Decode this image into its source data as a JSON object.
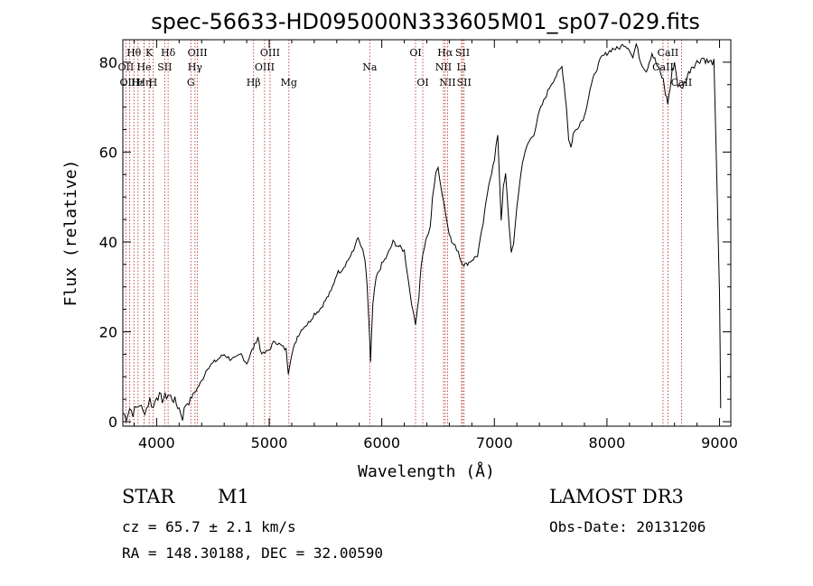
{
  "chart_data": {
    "type": "line",
    "title": "spec-56633-HD095000N333605M01_sp07-029.fits",
    "xlabel": "Wavelength (Å)",
    "ylabel": "Flux (relative)",
    "xlim": [
      3700,
      9100
    ],
    "ylim": [
      -1,
      85
    ],
    "xticks": [
      4000,
      5000,
      6000,
      7000,
      8000,
      9000
    ],
    "yticks": [
      0,
      20,
      40,
      60,
      80
    ],
    "series": [
      {
        "name": "flux",
        "x": [
          3700,
          3730,
          3760,
          3790,
          3820,
          3850,
          3880,
          3910,
          3940,
          3970,
          4000,
          4050,
          4100,
          4150,
          4200,
          4230,
          4260,
          4300,
          4350,
          4400,
          4450,
          4500,
          4550,
          4600,
          4650,
          4700,
          4750,
          4800,
          4850,
          4870,
          4900,
          4920,
          4950,
          5000,
          5050,
          5100,
          5150,
          5170,
          5190,
          5250,
          5300,
          5350,
          5400,
          5450,
          5500,
          5550,
          5600,
          5650,
          5700,
          5750,
          5780,
          5800,
          5830,
          5850,
          5870,
          5890,
          5900,
          5920,
          5950,
          6000,
          6050,
          6100,
          6150,
          6200,
          6250,
          6280,
          6300,
          6330,
          6350,
          6380,
          6400,
          6430,
          6450,
          6480,
          6500,
          6520,
          6550,
          6570,
          6600,
          6620,
          6650,
          6680,
          6700,
          6730,
          6750,
          6800,
          6850,
          6900,
          6950,
          7000,
          7030,
          7060,
          7080,
          7100,
          7130,
          7150,
          7170,
          7200,
          7250,
          7300,
          7350,
          7400,
          7450,
          7500,
          7550,
          7600,
          7620,
          7640,
          7660,
          7680,
          7700,
          7750,
          7800,
          7850,
          7900,
          7950,
          8000,
          8050,
          8100,
          8150,
          8200,
          8230,
          8260,
          8300,
          8350,
          8400,
          8450,
          8500,
          8520,
          8540,
          8560,
          8580,
          8600,
          8630,
          8660,
          8700,
          8750,
          8800,
          8850,
          8900,
          8950,
          9000,
          9010
        ],
        "values": [
          2,
          1,
          3,
          2,
          3,
          4,
          2,
          3,
          5,
          3,
          6,
          5,
          6,
          5,
          3,
          1,
          4,
          5,
          7,
          9,
          12,
          13,
          14,
          15,
          14,
          14,
          15,
          13,
          16,
          17,
          19,
          16,
          15,
          16,
          18,
          17,
          16,
          11,
          14,
          19,
          21,
          22,
          24,
          25,
          27,
          29,
          33,
          34,
          36,
          38,
          41,
          40,
          38,
          36,
          30,
          20,
          13,
          26,
          32,
          35,
          37,
          40,
          39,
          38,
          29,
          24,
          22,
          28,
          35,
          39,
          41,
          43,
          50,
          55,
          57,
          53,
          49,
          46,
          42,
          40,
          39,
          38,
          36,
          35,
          35,
          36,
          37,
          44,
          53,
          58,
          64,
          45,
          52,
          55,
          44,
          38,
          39,
          48,
          58,
          62,
          64,
          69,
          72,
          75,
          77,
          79,
          75,
          70,
          63,
          61,
          64,
          66,
          68,
          74,
          78,
          81,
          82,
          83,
          83,
          84,
          83,
          81,
          84,
          80,
          78,
          82,
          79,
          76,
          73,
          71,
          74,
          78,
          80,
          75,
          74,
          76,
          79,
          80,
          81,
          80,
          80,
          29,
          3
        ]
      }
    ],
    "line_markers": [
      {
        "label": "Hθ",
        "x": 3798,
        "row": 1
      },
      {
        "label": "OII",
        "x": 3727,
        "row": 2
      },
      {
        "label": "OIII",
        "x": 3760,
        "row": 3
      },
      {
        "label": "Hε",
        "x": 3835,
        "row": 3
      },
      {
        "label": "Hη",
        "x": 3889,
        "row": 3
      },
      {
        "label": "K",
        "x": 3934,
        "row": 1
      },
      {
        "label": "He",
        "x": 3889,
        "row": 2
      },
      {
        "label": "H",
        "x": 3968,
        "row": 3
      },
      {
        "label": "SII",
        "x": 4072,
        "row": 2
      },
      {
        "label": "Hδ",
        "x": 4102,
        "row": 1
      },
      {
        "label": "OIII",
        "x": 4363,
        "row": 1
      },
      {
        "label": "Hγ",
        "x": 4341,
        "row": 2
      },
      {
        "label": "G",
        "x": 4304,
        "row": 3
      },
      {
        "label": "Hβ",
        "x": 4861,
        "row": 3
      },
      {
        "label": "OIII",
        "x": 5007,
        "row": 1
      },
      {
        "label": "OIII",
        "x": 4959,
        "row": 2
      },
      {
        "label": "Mg",
        "x": 5175,
        "row": 3
      },
      {
        "label": "Na",
        "x": 5893,
        "row": 2
      },
      {
        "label": "OI",
        "x": 6300,
        "row": 1
      },
      {
        "label": "OI",
        "x": 6364,
        "row": 3
      },
      {
        "label": "Hα",
        "x": 6563,
        "row": 1
      },
      {
        "label": "NII",
        "x": 6548,
        "row": 2
      },
      {
        "label": "NII",
        "x": 6584,
        "row": 3
      },
      {
        "label": "SII",
        "x": 6717,
        "row": 1
      },
      {
        "label": "Li",
        "x": 6708,
        "row": 2
      },
      {
        "label": "SII",
        "x": 6731,
        "row": 3
      },
      {
        "label": "CaII",
        "x": 8542,
        "row": 1
      },
      {
        "label": "CaII",
        "x": 8498,
        "row": 2
      },
      {
        "label": "CaII",
        "x": 8662,
        "row": 3
      }
    ]
  },
  "info": {
    "class_text": "STAR",
    "subclass_text": "M1",
    "survey_text": "LAMOST DR3",
    "cz_text": "cz = 65.7 ± 2.1 km/s",
    "obs_date_text": "Obs-Date: 20131206",
    "coords_text": "RA = 148.30188, DEC =  32.00590"
  }
}
